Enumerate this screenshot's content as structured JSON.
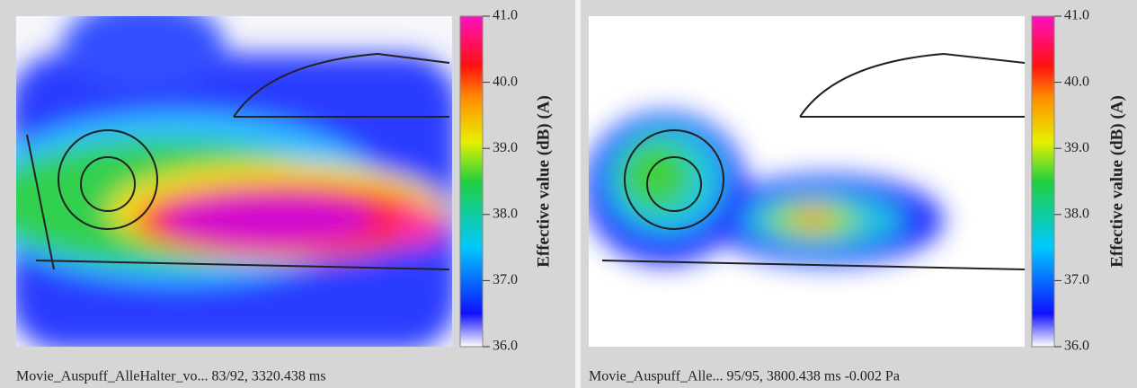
{
  "panels": [
    {
      "caption": "Movie_Auspuff_AlleHalter_vo...  83/92, 3320.438 ms",
      "colorbar": {
        "label": "Effective value (dB) (A)",
        "lim": [
          36,
          41
        ],
        "ticks": [
          {
            "value": 36,
            "label": "36.0"
          },
          {
            "value": 37,
            "label": "37.0"
          },
          {
            "value": 38,
            "label": "38.0"
          },
          {
            "value": 39,
            "label": "39.0"
          },
          {
            "value": 40,
            "label": "40.0"
          },
          {
            "value": 41,
            "label": "41.0"
          }
        ]
      }
    },
    {
      "caption": "Movie_Auspuff_Alle...  95/95, 3800.438 ms  -0.002 Pa",
      "colorbar": {
        "label": "Effective value (dB) (A)",
        "lim": [
          36,
          41
        ],
        "ticks": [
          {
            "value": 36,
            "label": "36.0"
          },
          {
            "value": 37,
            "label": "37.0"
          },
          {
            "value": 38,
            "label": "38.0"
          },
          {
            "value": 39,
            "label": "39.0"
          },
          {
            "value": 40,
            "label": "40.0"
          },
          {
            "value": 41,
            "label": "41.0"
          }
        ]
      }
    }
  ]
}
